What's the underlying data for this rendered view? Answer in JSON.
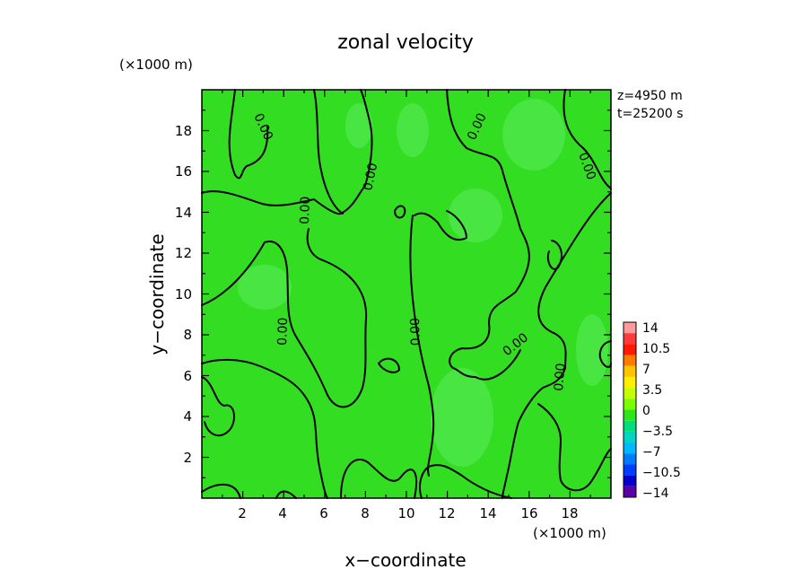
{
  "chart_data": {
    "type": "heatmap",
    "title": "zonal velocity",
    "xlabel": "x−coordinate",
    "ylabel": "y−coordinate",
    "x_unit_label": "(×1000 m)",
    "y_unit_label": "(×1000 m)",
    "xlim": [
      0,
      20
    ],
    "ylim": [
      0,
      20
    ],
    "x_ticks": [
      "2",
      "4",
      "6",
      "8",
      "10",
      "12",
      "14",
      "16",
      "18"
    ],
    "y_ticks": [
      "2",
      "4",
      "6",
      "8",
      "10",
      "12",
      "14",
      "16",
      "18"
    ],
    "info": {
      "z": "z=4950 m",
      "t": "t=25200 s"
    },
    "contour_level_label": "0.00",
    "colorbar": {
      "labels": [
        "14",
        "10.5",
        "7",
        "3.5",
        "0",
        "−3.5",
        "−7",
        "−10.5",
        "−14"
      ],
      "colors": [
        "#ff9a9a",
        "#ff3a3a",
        "#ff1a00",
        "#ff7a00",
        "#ffc400",
        "#ffee00",
        "#c4ff00",
        "#7aff00",
        "#2de61a",
        "#00e07a",
        "#00d6c4",
        "#00b8ff",
        "#007aff",
        "#003dff",
        "#0000cc",
        "#5a00a6"
      ]
    },
    "field_base_color": "#33dd22",
    "field_patch_color": "#52e850"
  }
}
